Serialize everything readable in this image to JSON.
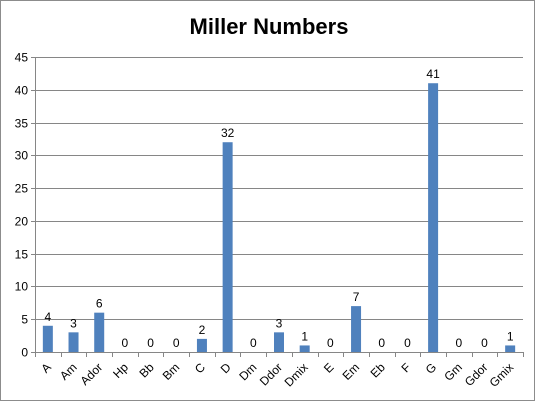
{
  "chart_data": {
    "type": "bar",
    "title": "Miller Numbers",
    "xlabel": "",
    "ylabel": "",
    "categories": [
      "A",
      "Am",
      "Ador",
      "Hp",
      "Bb",
      "Bm",
      "C",
      "D",
      "Dm",
      "Ddor",
      "Dmix",
      "E",
      "Em",
      "Eb",
      "F",
      "G",
      "Gm",
      "Gdor",
      "Gmix"
    ],
    "values": [
      4,
      3,
      6,
      0,
      0,
      0,
      2,
      32,
      0,
      3,
      1,
      0,
      7,
      0,
      0,
      41,
      0,
      0,
      1
    ],
    "ylim": [
      0,
      45
    ],
    "yticks": [
      0,
      5,
      10,
      15,
      20,
      25,
      30,
      35,
      40,
      45
    ],
    "grid": true,
    "legend": "none",
    "data_labels": true,
    "bar_color": "#4f81bd",
    "grid_color": "#868686"
  }
}
